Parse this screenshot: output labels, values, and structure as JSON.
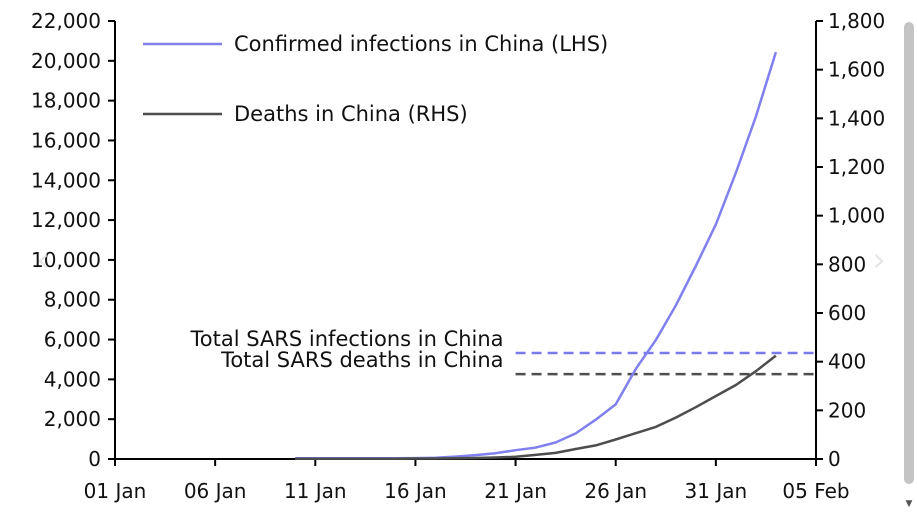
{
  "chart_data": {
    "type": "line",
    "x_axis": {
      "tick_labels": [
        "01 Jan",
        "06 Jan",
        "11 Jan",
        "16 Jan",
        "21 Jan",
        "26 Jan",
        "31 Jan",
        "05 Feb"
      ],
      "range": [
        "2020-01-01",
        "2020-02-05"
      ]
    },
    "y_left": {
      "range": [
        0,
        22000
      ],
      "tick_labels": [
        "0",
        "2,000",
        "4,000",
        "6,000",
        "8,000",
        "10,000",
        "12,000",
        "14,000",
        "16,000",
        "18,000",
        "20,000",
        "22,000"
      ]
    },
    "y_right": {
      "range": [
        0,
        1800
      ],
      "tick_labels": [
        "0",
        "200",
        "400",
        "600",
        "800",
        "1,000",
        "1,200",
        "1,400",
        "1,600",
        "1,800"
      ]
    },
    "grid": false,
    "legend_position": "top-left",
    "series": [
      {
        "name": "Confirmed infections in China (LHS)",
        "axis": "left",
        "color": "#8080ee",
        "x": [
          "2020-01-10",
          "2020-01-11",
          "2020-01-12",
          "2020-01-13",
          "2020-01-14",
          "2020-01-15",
          "2020-01-16",
          "2020-01-17",
          "2020-01-18",
          "2020-01-19",
          "2020-01-20",
          "2020-01-21",
          "2020-01-22",
          "2020-01-23",
          "2020-01-24",
          "2020-01-25",
          "2020-01-26",
          "2020-01-27",
          "2020-01-28",
          "2020-01-29",
          "2020-01-30",
          "2020-01-31",
          "2020-02-01",
          "2020-02-02",
          "2020-02-03"
        ],
        "values": [
          41,
          41,
          41,
          41,
          41,
          41,
          45,
          62,
          121,
          198,
          291,
          440,
          571,
          830,
          1287,
          1975,
          2744,
          4515,
          5974,
          7711,
          9692,
          11791,
          14380,
          17205,
          20438
        ]
      },
      {
        "name": "Deaths in China (RHS)",
        "axis": "right",
        "color": "#4d4d4d",
        "x": [
          "2020-01-10",
          "2020-01-11",
          "2020-01-12",
          "2020-01-13",
          "2020-01-14",
          "2020-01-15",
          "2020-01-16",
          "2020-01-17",
          "2020-01-18",
          "2020-01-19",
          "2020-01-20",
          "2020-01-21",
          "2020-01-22",
          "2020-01-23",
          "2020-01-24",
          "2020-01-25",
          "2020-01-26",
          "2020-01-27",
          "2020-01-28",
          "2020-01-29",
          "2020-01-30",
          "2020-01-31",
          "2020-02-01",
          "2020-02-02",
          "2020-02-03"
        ],
        "values": [
          1,
          1,
          1,
          1,
          1,
          1,
          2,
          2,
          3,
          4,
          6,
          9,
          17,
          25,
          41,
          56,
          80,
          106,
          132,
          170,
          213,
          259,
          304,
          361,
          425
        ]
      }
    ],
    "reference_lines": [
      {
        "label": "Total SARS  infections in China",
        "axis": "left",
        "value": 5327,
        "color": "#7b7bee",
        "style": "dashed",
        "x_start": "2020-01-21"
      },
      {
        "label": "Total SARS deaths in China",
        "axis": "right",
        "value": 349,
        "color": "#4d4d4d",
        "style": "dashed",
        "x_start": "2020-01-21"
      }
    ]
  }
}
